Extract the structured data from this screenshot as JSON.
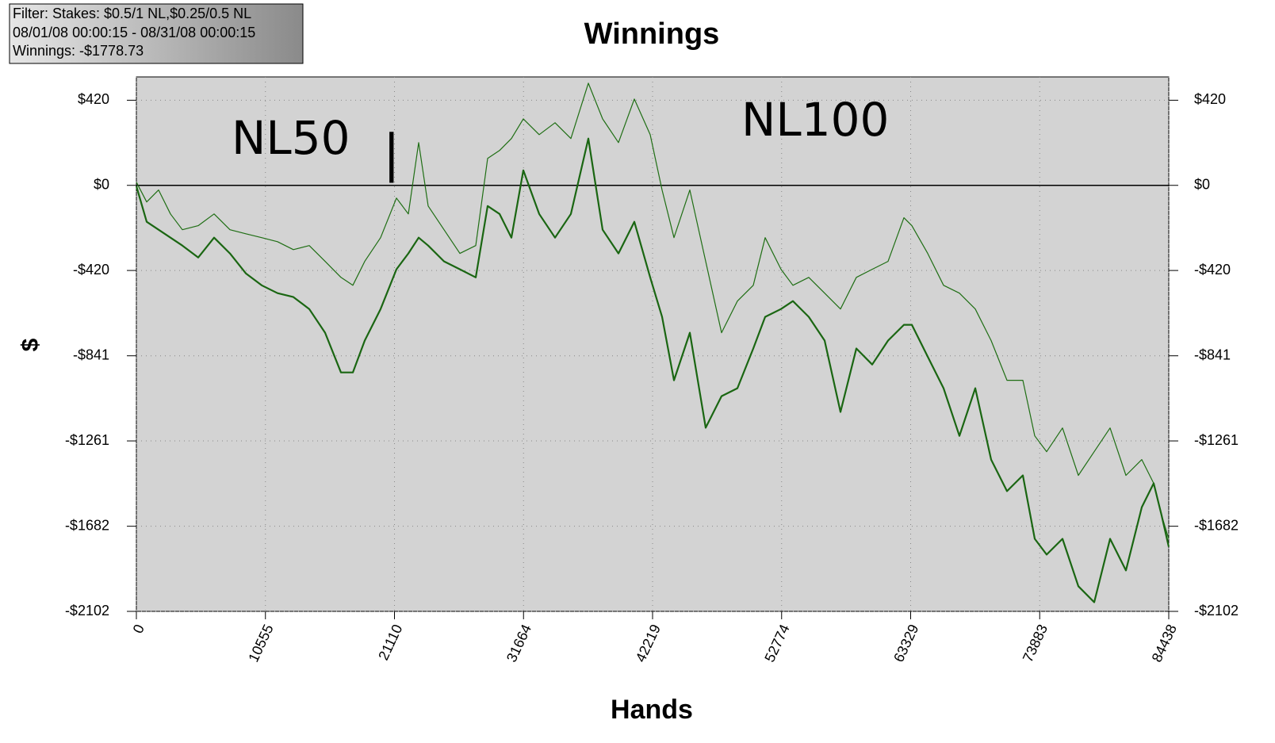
{
  "chart_data": {
    "type": "line",
    "title": "Winnings",
    "x_label": "Hands",
    "y_label": "$",
    "info_box": [
      "Filter: Stakes: $0.5/1 NL,$0.25/0.5 NL",
      "08/01/08 00:00:15 - 08/31/08 00:00:15",
      "Winnings: -$1778.73"
    ],
    "annotations": [
      "NL50",
      "|",
      "NL100"
    ],
    "grid": true,
    "xlim": [
      0,
      84438
    ],
    "xticks": [
      0,
      10555,
      21110,
      31664,
      42219,
      52774,
      63329,
      73883,
      84438
    ],
    "ylim": [
      -2102,
      535
    ],
    "yticks": [
      {
        "value": 420,
        "label": "$420"
      },
      {
        "value": 0,
        "label": "$0"
      },
      {
        "value": -420,
        "label": "-$420"
      },
      {
        "value": -841,
        "label": "-$841"
      },
      {
        "value": -1261,
        "label": "-$1261"
      },
      {
        "value": -1682,
        "label": "-$1682"
      },
      {
        "value": -2102,
        "label": "-$2102"
      }
    ],
    "x": [
      0,
      843,
      1816,
      2789,
      3761,
      5058,
      6355,
      7652,
      8949,
      10246,
      11543,
      12840,
      14137,
      15434,
      16731,
      17704,
      18677,
      19974,
      21271,
      22243,
      23087,
      23865,
      25162,
      26459,
      27756,
      28729,
      29701,
      30674,
      31647,
      32944,
      34241,
      35538,
      36965,
      38132,
      39429,
      40726,
      42023,
      42996,
      43969,
      45266,
      46563,
      47860,
      49156,
      50453,
      51426,
      52723,
      53696,
      54993,
      56290,
      57587,
      58884,
      60181,
      61478,
      62775,
      63423,
      64720,
      66017,
      67314,
      68611,
      69908,
      71205,
      72502,
      73475,
      74448,
      75745,
      77042,
      78339,
      79636,
      80933,
      82230,
      83203,
      83851,
      84438
    ],
    "series": [
      {
        "color": "#1f6e14",
        "line_width": 1.2,
        "values": [
          16,
          -82,
          -23,
          -141,
          -219,
          -199,
          -141,
          -219,
          -239,
          -258,
          -278,
          -317,
          -297,
          -375,
          -454,
          -493,
          -375,
          -258,
          -63,
          -141,
          211,
          -102,
          -219,
          -336,
          -297,
          133,
          172,
          231,
          328,
          250,
          309,
          231,
          504,
          328,
          211,
          426,
          250,
          -23,
          -258,
          -23,
          -375,
          -727,
          -571,
          -493,
          -258,
          -414,
          -493,
          -454,
          -532,
          -610,
          -454,
          -414,
          -375,
          -160,
          -199,
          -336,
          -493,
          -532,
          -610,
          -766,
          -962,
          -962,
          -1236,
          -1314,
          -1197,
          -1431,
          -1314,
          -1197,
          -1431,
          -1353,
          -1470,
          -1627,
          -1744
        ]
      },
      {
        "color": "#1a6612",
        "line_width": 2.2,
        "values": [
          -4,
          -180,
          -219,
          -258,
          -297,
          -356,
          -258,
          -336,
          -434,
          -493,
          -532,
          -551,
          -610,
          -727,
          -923,
          -923,
          -766,
          -610,
          -414,
          -336,
          -258,
          -297,
          -375,
          -414,
          -454,
          -102,
          -141,
          -258,
          74,
          -141,
          -258,
          -141,
          231,
          -219,
          -336,
          -180,
          -454,
          -649,
          -962,
          -727,
          -1196,
          -1040,
          -1001,
          -805,
          -649,
          -610,
          -571,
          -649,
          -766,
          -1118,
          -805,
          -884,
          -766,
          -688,
          -688,
          -845,
          -1001,
          -1236,
          -1001,
          -1353,
          -1509,
          -1431,
          -1744,
          -1822,
          -1744,
          -1978,
          -2057,
          -1744,
          -1900,
          -1588,
          -1470,
          -1627,
          -1783
        ]
      }
    ]
  }
}
